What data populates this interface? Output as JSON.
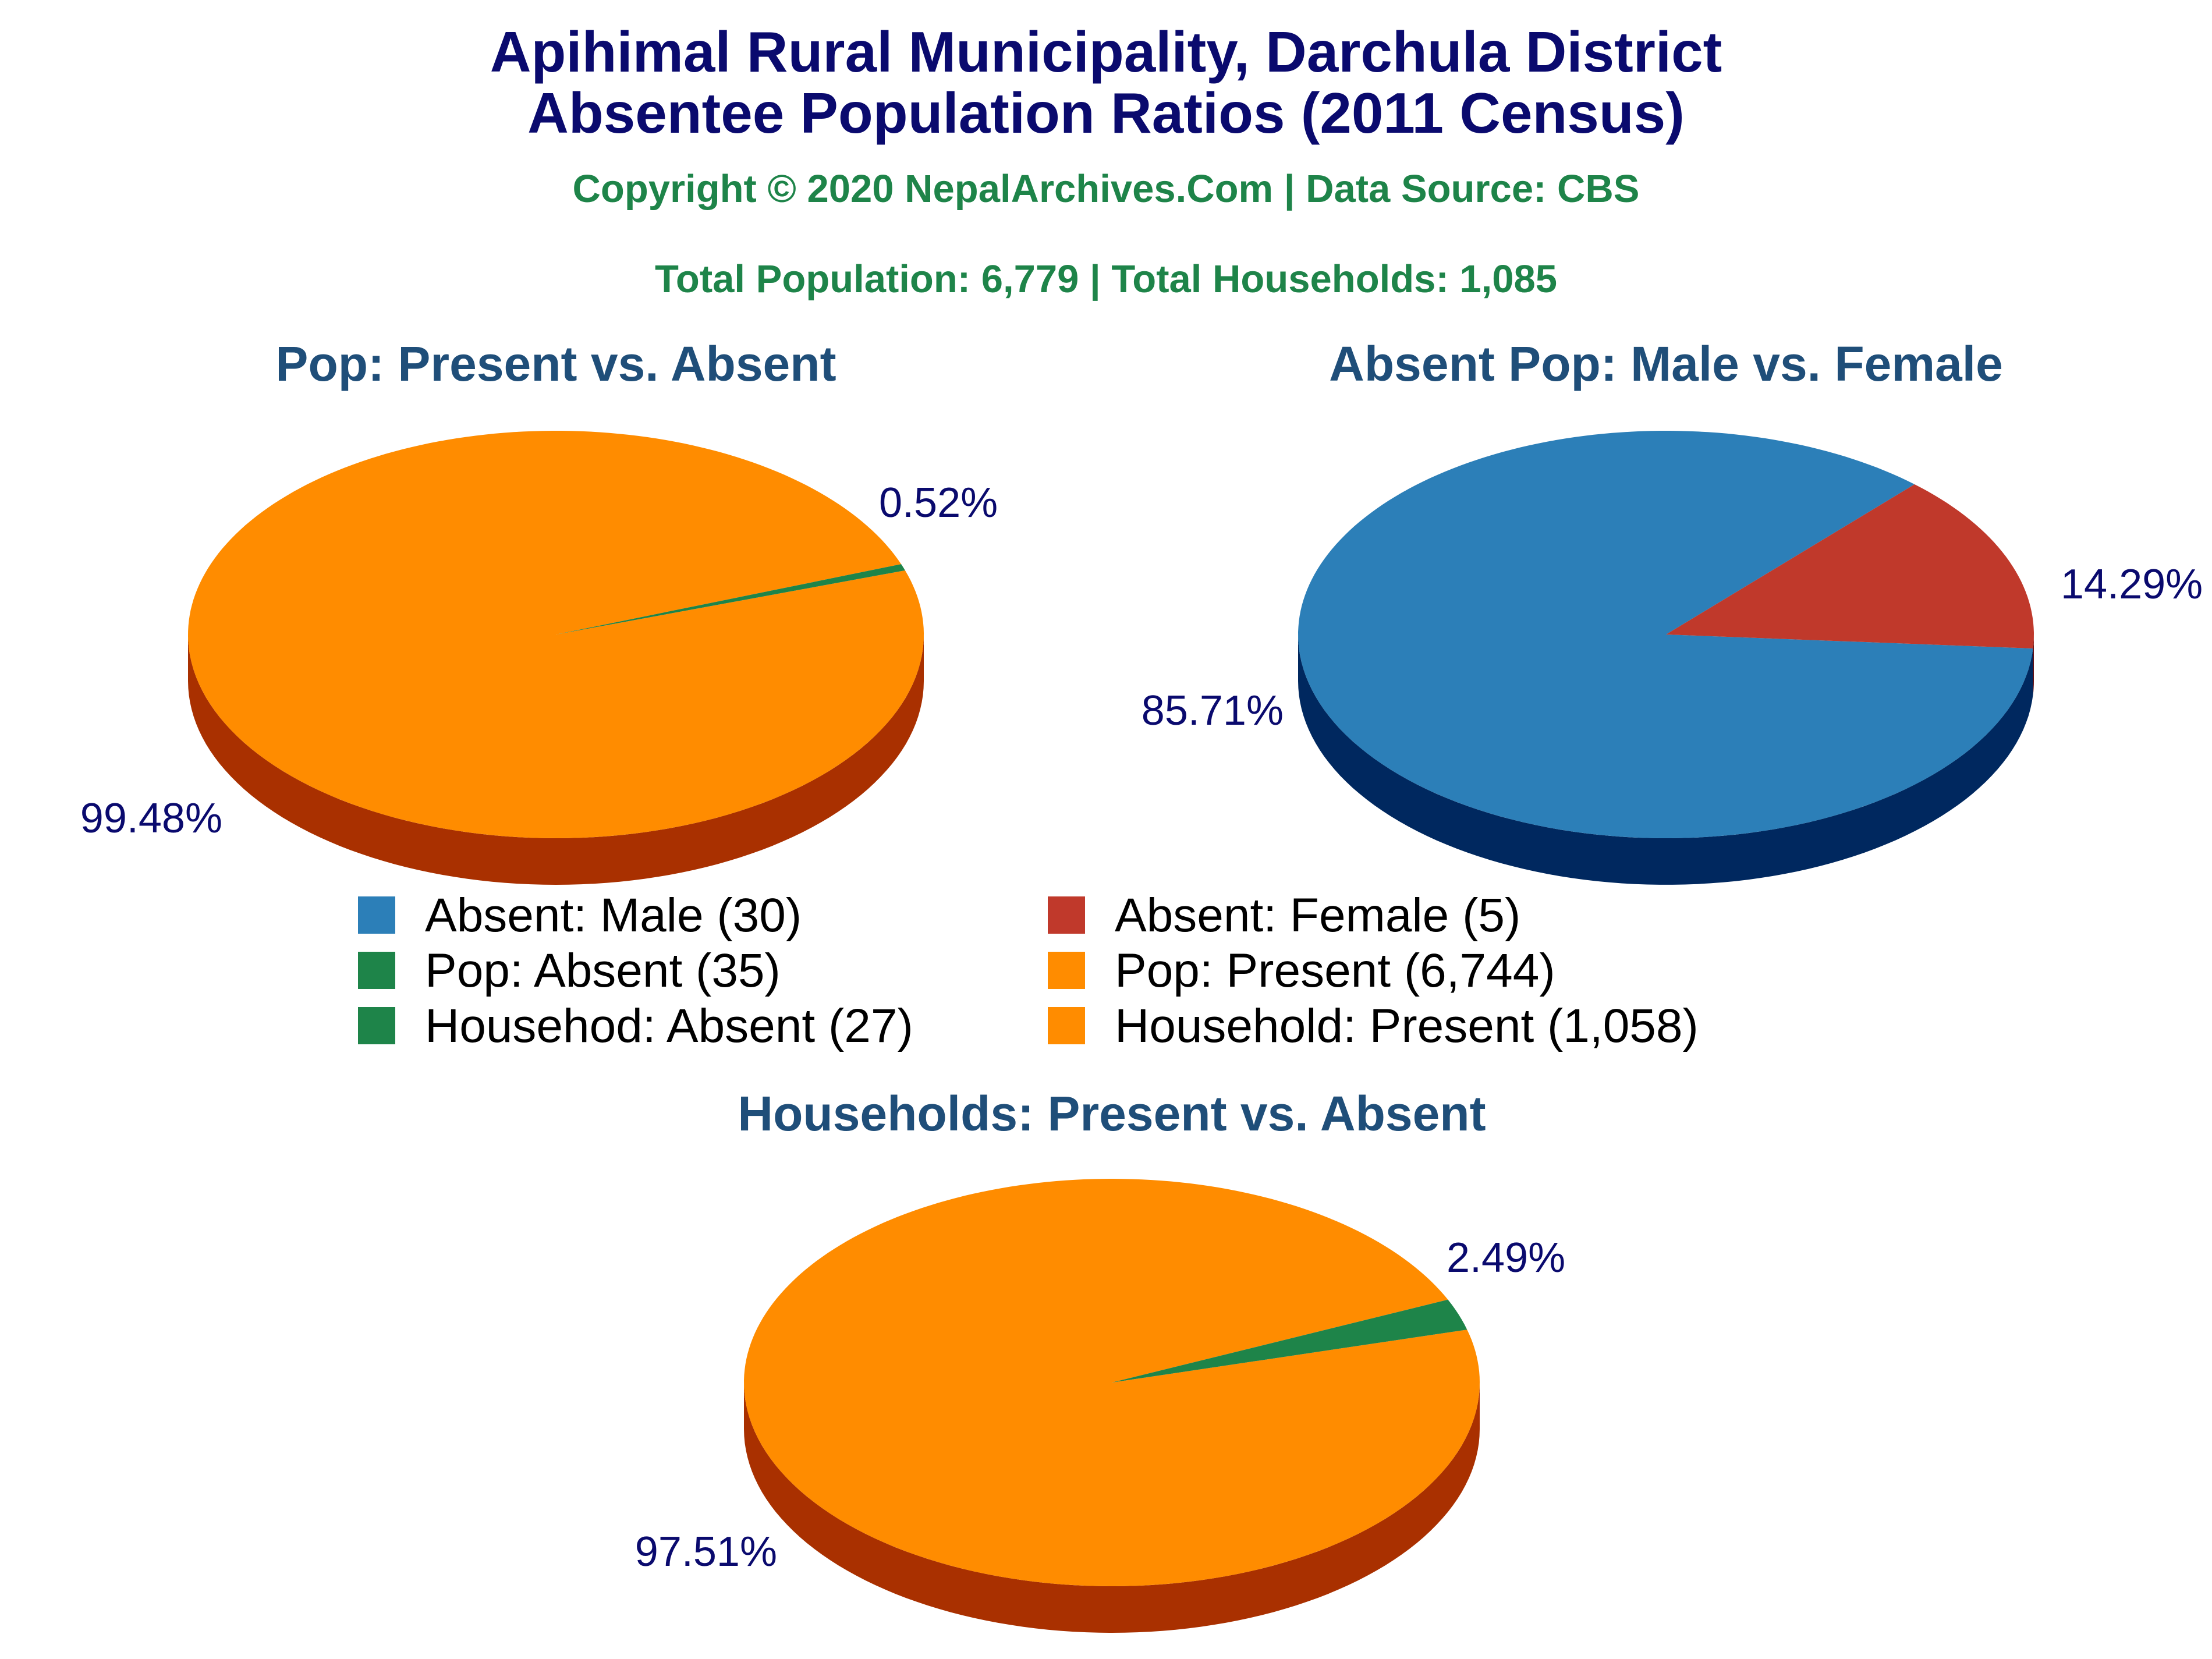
{
  "header": {
    "title_line1": "Apihimal Rural Municipality, Darchula District",
    "title_line2": "Absentee Population Ratios (2011 Census)",
    "copyright": "Copyright © 2020 NepalArchives.Com | Data Source: CBS",
    "totals": "Total Population: 6,779 | Total Households: 1,085"
  },
  "colors": {
    "title": "#0a0a6e",
    "subtitle": "#1e8449",
    "pie_title": "#1f4e79",
    "pct_label": "#0a0a6e",
    "present": "#ff8c00",
    "present_side": "#a93000",
    "absent": "#1e8449",
    "absent_side": "#0e5a2c",
    "male": "#2c7fb8",
    "male_side": "#00285f",
    "female": "#c0392b",
    "female_side": "#6b0f0f"
  },
  "chart_data": [
    {
      "type": "pie",
      "title": "Pop: Present vs. Absent",
      "slices": [
        {
          "label": "Pop: Present",
          "value": 6744,
          "percent_label": "99.48%",
          "color": "present"
        },
        {
          "label": "Pop: Absent",
          "value": 35,
          "percent_label": "0.52%",
          "color": "absent"
        }
      ]
    },
    {
      "type": "pie",
      "title": "Absent Pop: Male vs. Female",
      "slices": [
        {
          "label": "Absent: Male",
          "value": 30,
          "percent_label": "85.71%",
          "color": "male"
        },
        {
          "label": "Absent: Female",
          "value": 5,
          "percent_label": "14.29%",
          "color": "female"
        }
      ]
    },
    {
      "type": "pie",
      "title": "Households: Present vs. Absent",
      "slices": [
        {
          "label": "Household: Present",
          "value": 1058,
          "percent_label": "97.51%",
          "color": "present"
        },
        {
          "label": "Household: Absent",
          "value": 27,
          "percent_label": "2.49%",
          "color": "absent"
        }
      ]
    }
  ],
  "legend": [
    {
      "label": "Absent: Male (30)",
      "color": "male"
    },
    {
      "label": "Absent: Female (5)",
      "color": "female"
    },
    {
      "label": "Pop: Absent (35)",
      "color": "absent"
    },
    {
      "label": "Pop: Present (6,744)",
      "color": "present"
    },
    {
      "label": "Househod: Absent (27)",
      "color": "absent"
    },
    {
      "label": "Household: Present (1,058)",
      "color": "present"
    }
  ]
}
